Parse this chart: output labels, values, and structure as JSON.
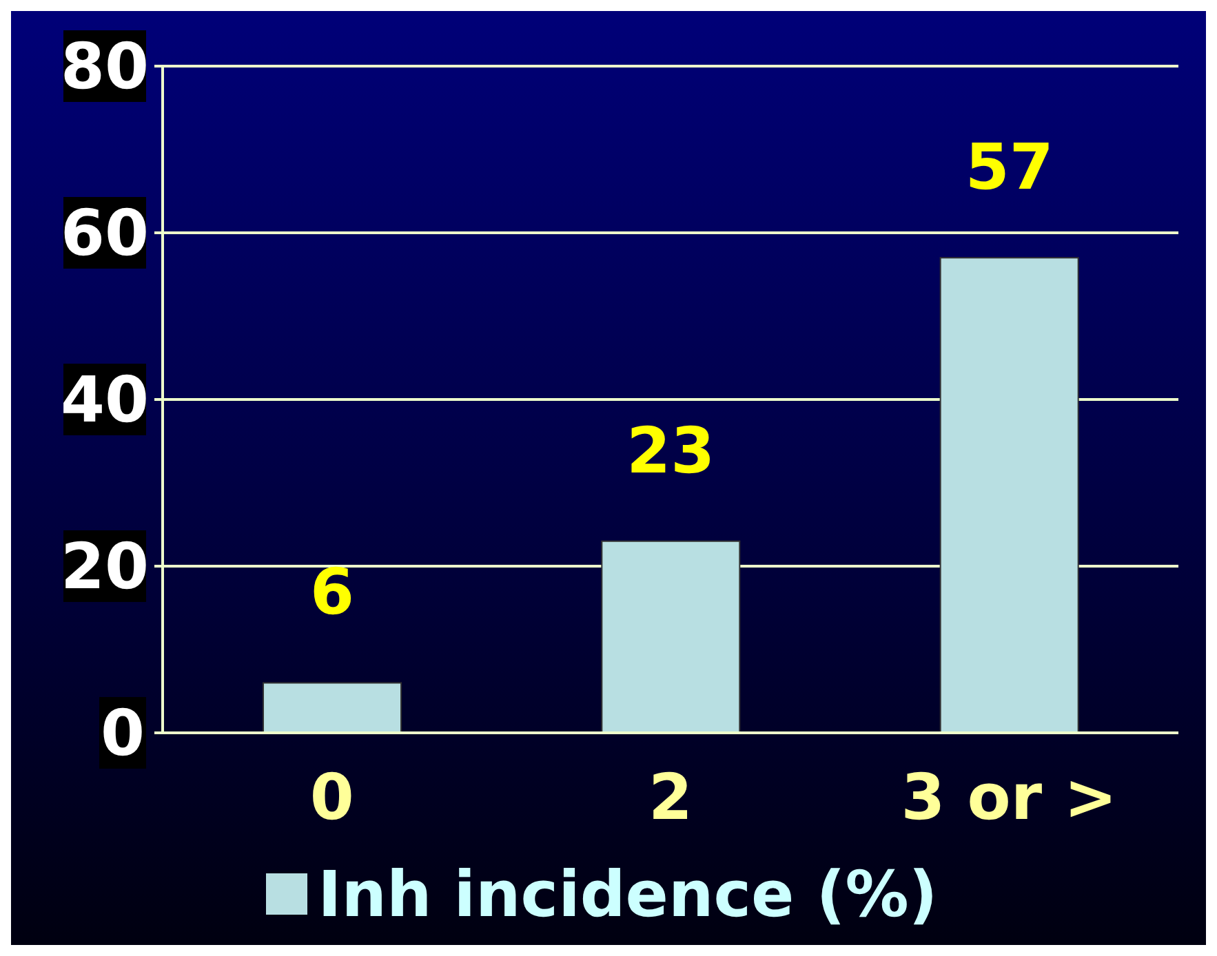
{
  "chart_data": {
    "type": "bar",
    "categories": [
      "0",
      "2",
      "3 or >"
    ],
    "series": [
      {
        "name": "Inh incidence (%)",
        "color": "#b8dfe2",
        "values": [
          6,
          23,
          57
        ]
      }
    ],
    "ylim": [
      0,
      80
    ],
    "yticks": [
      0,
      20,
      40,
      60,
      80
    ],
    "grid": "y",
    "legend": "bottom",
    "data_labels": true
  }
}
